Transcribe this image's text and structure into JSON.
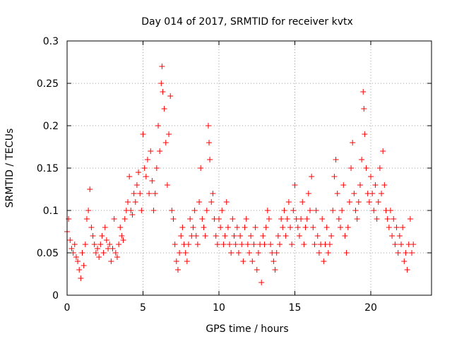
{
  "chart_data": {
    "type": "scatter",
    "title": "Day 014 of 2017, SRMTID for receiver kvtx",
    "xlabel": "GPS time / hours",
    "ylabel": "SRMTID / TECUs",
    "xlim": [
      0,
      24
    ],
    "ylim": [
      0,
      0.3
    ],
    "xticks": [
      "0",
      "5",
      "10",
      "15",
      "20"
    ],
    "yticks": [
      "0",
      "0.05",
      "0.1",
      "0.15",
      "0.2",
      "0.25",
      "0.3"
    ],
    "grid": true,
    "marker": "+",
    "color": "#ff0000",
    "series": [
      {
        "name": "SRMTID",
        "points": [
          [
            0.0,
            0.075
          ],
          [
            0.1,
            0.09
          ],
          [
            0.2,
            0.065
          ],
          [
            0.3,
            0.055
          ],
          [
            0.4,
            0.05
          ],
          [
            0.5,
            0.06
          ],
          [
            0.6,
            0.045
          ],
          [
            0.7,
            0.04
          ],
          [
            0.8,
            0.03
          ],
          [
            0.9,
            0.02
          ],
          [
            1.0,
            0.05
          ],
          [
            1.1,
            0.035
          ],
          [
            1.2,
            0.06
          ],
          [
            1.3,
            0.09
          ],
          [
            1.4,
            0.1
          ],
          [
            1.5,
            0.125
          ],
          [
            1.6,
            0.08
          ],
          [
            1.7,
            0.07
          ],
          [
            1.8,
            0.06
          ],
          [
            1.9,
            0.05
          ],
          [
            2.0,
            0.055
          ],
          [
            2.1,
            0.045
          ],
          [
            2.2,
            0.06
          ],
          [
            2.3,
            0.07
          ],
          [
            2.4,
            0.05
          ],
          [
            2.5,
            0.08
          ],
          [
            2.6,
            0.065
          ],
          [
            2.7,
            0.055
          ],
          [
            2.8,
            0.06
          ],
          [
            2.9,
            0.04
          ],
          [
            3.0,
            0.055
          ],
          [
            3.1,
            0.09
          ],
          [
            3.2,
            0.05
          ],
          [
            3.3,
            0.045
          ],
          [
            3.4,
            0.06
          ],
          [
            3.5,
            0.08
          ],
          [
            3.6,
            0.07
          ],
          [
            3.7,
            0.065
          ],
          [
            3.8,
            0.09
          ],
          [
            3.9,
            0.1
          ],
          [
            4.0,
            0.11
          ],
          [
            4.1,
            0.14
          ],
          [
            4.2,
            0.1
          ],
          [
            4.3,
            0.095
          ],
          [
            4.4,
            0.12
          ],
          [
            4.5,
            0.11
          ],
          [
            4.6,
            0.13
          ],
          [
            4.7,
            0.145
          ],
          [
            4.8,
            0.12
          ],
          [
            4.9,
            0.1
          ],
          [
            5.0,
            0.19
          ],
          [
            5.1,
            0.15
          ],
          [
            5.2,
            0.14
          ],
          [
            5.3,
            0.16
          ],
          [
            5.4,
            0.12
          ],
          [
            5.5,
            0.17
          ],
          [
            5.6,
            0.135
          ],
          [
            5.7,
            0.1
          ],
          [
            5.8,
            0.12
          ],
          [
            5.9,
            0.15
          ],
          [
            6.0,
            0.2
          ],
          [
            6.1,
            0.17
          ],
          [
            6.2,
            0.25
          ],
          [
            6.25,
            0.27
          ],
          [
            6.3,
            0.24
          ],
          [
            6.4,
            0.22
          ],
          [
            6.5,
            0.18
          ],
          [
            6.6,
            0.13
          ],
          [
            6.7,
            0.19
          ],
          [
            6.8,
            0.235
          ],
          [
            6.9,
            0.1
          ],
          [
            7.0,
            0.09
          ],
          [
            7.1,
            0.06
          ],
          [
            7.2,
            0.04
          ],
          [
            7.3,
            0.03
          ],
          [
            7.4,
            0.05
          ],
          [
            7.5,
            0.07
          ],
          [
            7.6,
            0.08
          ],
          [
            7.7,
            0.06
          ],
          [
            7.8,
            0.05
          ],
          [
            7.9,
            0.04
          ],
          [
            8.0,
            0.06
          ],
          [
            8.1,
            0.09
          ],
          [
            8.2,
            0.07
          ],
          [
            8.3,
            0.08
          ],
          [
            8.4,
            0.1
          ],
          [
            8.5,
            0.07
          ],
          [
            8.6,
            0.06
          ],
          [
            8.7,
            0.11
          ],
          [
            8.8,
            0.15
          ],
          [
            8.9,
            0.09
          ],
          [
            9.0,
            0.08
          ],
          [
            9.1,
            0.07
          ],
          [
            9.2,
            0.1
          ],
          [
            9.3,
            0.2
          ],
          [
            9.35,
            0.18
          ],
          [
            9.4,
            0.16
          ],
          [
            9.5,
            0.11
          ],
          [
            9.6,
            0.12
          ],
          [
            9.7,
            0.09
          ],
          [
            9.8,
            0.07
          ],
          [
            9.9,
            0.06
          ],
          [
            10.0,
            0.09
          ],
          [
            10.1,
            0.08
          ],
          [
            10.2,
            0.1
          ],
          [
            10.3,
            0.06
          ],
          [
            10.4,
            0.07
          ],
          [
            10.5,
            0.11
          ],
          [
            10.6,
            0.08
          ],
          [
            10.7,
            0.06
          ],
          [
            10.8,
            0.05
          ],
          [
            10.9,
            0.09
          ],
          [
            11.0,
            0.07
          ],
          [
            11.1,
            0.06
          ],
          [
            11.2,
            0.08
          ],
          [
            11.3,
            0.05
          ],
          [
            11.4,
            0.07
          ],
          [
            11.5,
            0.06
          ],
          [
            11.6,
            0.04
          ],
          [
            11.7,
            0.08
          ],
          [
            11.8,
            0.09
          ],
          [
            11.9,
            0.06
          ],
          [
            12.0,
            0.05
          ],
          [
            12.1,
            0.07
          ],
          [
            12.2,
            0.04
          ],
          [
            12.3,
            0.06
          ],
          [
            12.4,
            0.08
          ],
          [
            12.5,
            0.03
          ],
          [
            12.6,
            0.05
          ],
          [
            12.7,
            0.06
          ],
          [
            12.8,
            0.015
          ],
          [
            12.9,
            0.07
          ],
          [
            13.0,
            0.06
          ],
          [
            13.1,
            0.08
          ],
          [
            13.2,
            0.1
          ],
          [
            13.3,
            0.09
          ],
          [
            13.4,
            0.06
          ],
          [
            13.5,
            0.05
          ],
          [
            13.6,
            0.04
          ],
          [
            13.7,
            0.03
          ],
          [
            13.8,
            0.05
          ],
          [
            13.9,
            0.07
          ],
          [
            14.0,
            0.06
          ],
          [
            14.1,
            0.09
          ],
          [
            14.2,
            0.08
          ],
          [
            14.3,
            0.1
          ],
          [
            14.4,
            0.07
          ],
          [
            14.5,
            0.09
          ],
          [
            14.6,
            0.11
          ],
          [
            14.7,
            0.08
          ],
          [
            14.8,
            0.06
          ],
          [
            14.9,
            0.1
          ],
          [
            15.0,
            0.13
          ],
          [
            15.1,
            0.09
          ],
          [
            15.2,
            0.08
          ],
          [
            15.3,
            0.07
          ],
          [
            15.4,
            0.09
          ],
          [
            15.5,
            0.11
          ],
          [
            15.6,
            0.06
          ],
          [
            15.7,
            0.08
          ],
          [
            15.8,
            0.09
          ],
          [
            15.9,
            0.12
          ],
          [
            16.0,
            0.1
          ],
          [
            16.1,
            0.14
          ],
          [
            16.2,
            0.08
          ],
          [
            16.3,
            0.06
          ],
          [
            16.4,
            0.1
          ],
          [
            16.5,
            0.07
          ],
          [
            16.6,
            0.05
          ],
          [
            16.7,
            0.06
          ],
          [
            16.8,
            0.09
          ],
          [
            16.9,
            0.04
          ],
          [
            17.0,
            0.06
          ],
          [
            17.1,
            0.08
          ],
          [
            17.2,
            0.05
          ],
          [
            17.3,
            0.06
          ],
          [
            17.4,
            0.07
          ],
          [
            17.5,
            0.1
          ],
          [
            17.6,
            0.14
          ],
          [
            17.7,
            0.16
          ],
          [
            17.8,
            0.12
          ],
          [
            17.9,
            0.09
          ],
          [
            18.0,
            0.08
          ],
          [
            18.1,
            0.1
          ],
          [
            18.2,
            0.13
          ],
          [
            18.3,
            0.07
          ],
          [
            18.4,
            0.05
          ],
          [
            18.5,
            0.08
          ],
          [
            18.6,
            0.11
          ],
          [
            18.7,
            0.15
          ],
          [
            18.8,
            0.18
          ],
          [
            18.9,
            0.12
          ],
          [
            19.0,
            0.1
          ],
          [
            19.1,
            0.09
          ],
          [
            19.2,
            0.11
          ],
          [
            19.3,
            0.13
          ],
          [
            19.4,
            0.16
          ],
          [
            19.5,
            0.24
          ],
          [
            19.55,
            0.22
          ],
          [
            19.6,
            0.19
          ],
          [
            19.7,
            0.15
          ],
          [
            19.8,
            0.12
          ],
          [
            19.9,
            0.11
          ],
          [
            20.0,
            0.14
          ],
          [
            20.1,
            0.12
          ],
          [
            20.2,
            0.1
          ],
          [
            20.3,
            0.13
          ],
          [
            20.4,
            0.09
          ],
          [
            20.5,
            0.11
          ],
          [
            20.6,
            0.15
          ],
          [
            20.7,
            0.12
          ],
          [
            20.8,
            0.17
          ],
          [
            20.9,
            0.13
          ],
          [
            21.0,
            0.1
          ],
          [
            21.1,
            0.09
          ],
          [
            21.2,
            0.08
          ],
          [
            21.3,
            0.1
          ],
          [
            21.4,
            0.07
          ],
          [
            21.5,
            0.09
          ],
          [
            21.6,
            0.06
          ],
          [
            21.7,
            0.08
          ],
          [
            21.8,
            0.05
          ],
          [
            21.9,
            0.07
          ],
          [
            22.0,
            0.06
          ],
          [
            22.1,
            0.08
          ],
          [
            22.2,
            0.04
          ],
          [
            22.3,
            0.05
          ],
          [
            22.4,
            0.03
          ],
          [
            22.5,
            0.06
          ],
          [
            22.6,
            0.09
          ],
          [
            22.7,
            0.05
          ],
          [
            22.8,
            0.06
          ]
        ]
      }
    ]
  }
}
